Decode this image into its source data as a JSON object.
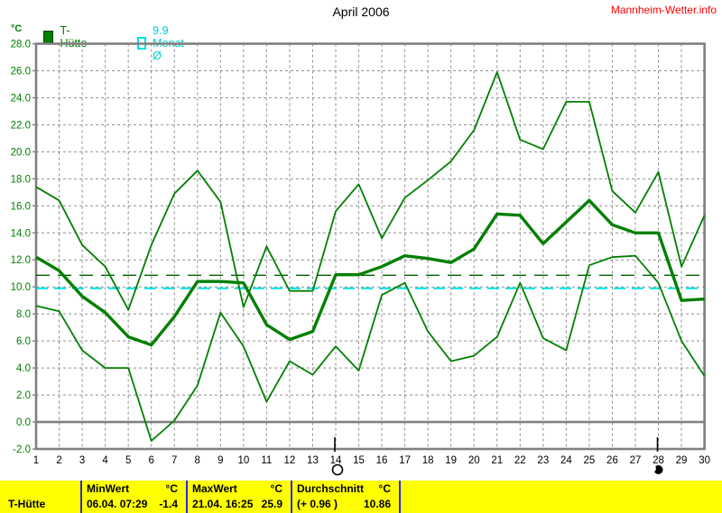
{
  "header": {
    "title": "April 2006",
    "site_link": "Mannheim-Wetter.info"
  },
  "legend": {
    "unit_label": "°C",
    "series_label": "T-Hütte",
    "monthly_avg_label": "9.9 Monat-Ø"
  },
  "colors": {
    "series_green": "#008000",
    "avg_line_green": "#006400",
    "monthly_avg_cyan": "#00e0e0",
    "grid_gray": "#8f8f8f",
    "frame_gray": "#808080",
    "ylabel_green": "#008000",
    "xlabel_black": "#000000",
    "link_red": "#ff0000",
    "table_yellow": "#ffff00",
    "table_divider_blue": "#2a2ae0"
  },
  "chart_data": {
    "type": "line",
    "title": "April 2006",
    "xlabel": "",
    "ylabel": "°C",
    "x": [
      1,
      2,
      3,
      4,
      5,
      6,
      7,
      8,
      9,
      10,
      11,
      12,
      13,
      14,
      15,
      16,
      17,
      18,
      19,
      20,
      21,
      22,
      23,
      24,
      25,
      26,
      27,
      28,
      29,
      30
    ],
    "ylim": [
      -2,
      28
    ],
    "ytick_step": 2,
    "grid": true,
    "series": [
      {
        "name": "T-Hütte max",
        "width": "thin",
        "values": [
          17.4,
          16.4,
          13.1,
          11.5,
          8.3,
          13.1,
          16.9,
          18.6,
          16.3,
          8.5,
          13.0,
          9.7,
          9.7,
          15.6,
          17.6,
          13.6,
          16.6,
          17.9,
          19.3,
          21.6,
          25.9,
          20.9,
          20.2,
          23.7,
          23.7,
          17.1,
          15.5,
          18.5,
          11.5,
          15.3
        ]
      },
      {
        "name": "T-Hütte mean",
        "width": "thick",
        "values": [
          12.2,
          11.2,
          9.3,
          8.1,
          6.3,
          5.7,
          7.8,
          10.4,
          10.4,
          10.3,
          7.2,
          6.1,
          6.7,
          10.9,
          10.9,
          11.5,
          12.3,
          12.1,
          11.8,
          12.8,
          15.4,
          15.3,
          13.2,
          14.8,
          16.4,
          14.6,
          14.0,
          14.0,
          9.0,
          9.1
        ]
      },
      {
        "name": "T-Hütte min",
        "width": "thin",
        "values": [
          8.6,
          8.2,
          5.3,
          4.0,
          4.0,
          -1.4,
          0.1,
          2.7,
          8.1,
          5.6,
          1.5,
          4.5,
          3.5,
          5.6,
          3.8,
          9.4,
          10.3,
          6.7,
          4.5,
          4.9,
          6.3,
          10.3,
          6.2,
          5.3,
          11.6,
          12.2,
          12.3,
          10.3,
          6.0,
          3.4
        ]
      }
    ],
    "reference_lines": [
      {
        "name": "Durchschnitt",
        "value": 10.86,
        "color": "#006400",
        "dash": "15,9",
        "width": 1.4
      },
      {
        "name": "Monat-Ø",
        "value": 9.9,
        "color": "#00e0e0",
        "dash": "13,7",
        "width": 2
      }
    ],
    "moon_markers": [
      {
        "day": 14,
        "phase": "open-circle"
      },
      {
        "day": 28,
        "phase": "filled-circle"
      }
    ],
    "legend_position": "top-left"
  },
  "table": {
    "row_label": "T-Hütte",
    "min": {
      "header": "MinWert",
      "unit": "°C",
      "datetime": "06.04.  07:29",
      "value": "-1.4"
    },
    "max": {
      "header": "MaxWert",
      "unit": "°C",
      "datetime": "21.04.  16:25",
      "value": "25.9"
    },
    "avg": {
      "header": "Durchschnitt",
      "unit": "°C",
      "anomaly": "(+ 0.96 )",
      "value": "10.86"
    }
  }
}
